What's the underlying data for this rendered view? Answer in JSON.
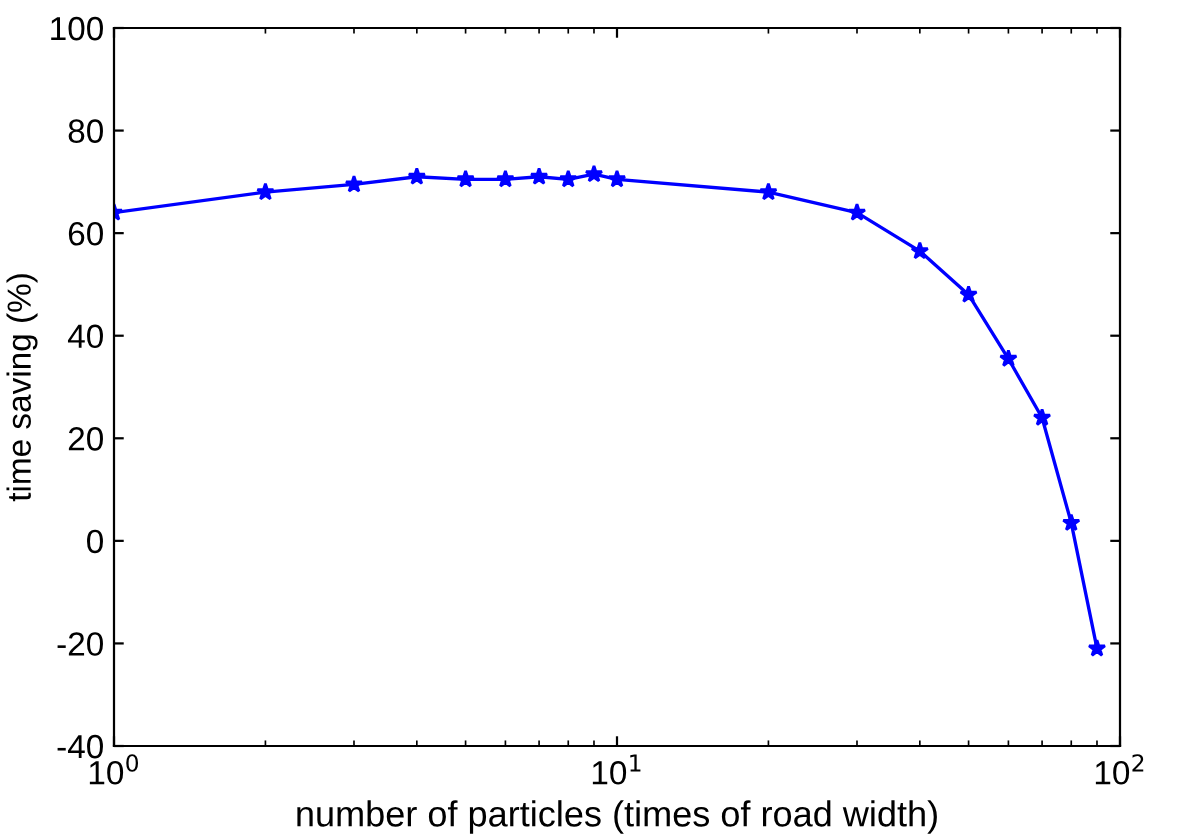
{
  "chart_data": {
    "type": "line",
    "xlabel": "number of particles (times of road width)",
    "ylabel": "time saving (%)",
    "x": [
      1,
      2,
      3,
      4,
      5,
      6,
      7,
      8,
      9,
      10,
      20,
      30,
      40,
      50,
      60,
      70,
      80,
      90
    ],
    "series": [
      {
        "color": "#0000ff",
        "values": [
          64,
          68,
          69.5,
          71,
          70.5,
          70.5,
          71,
          70.5,
          71.5,
          70.5,
          68,
          64,
          56.5,
          48,
          35.5,
          24,
          3.5,
          -21
        ]
      }
    ],
    "log": "x",
    "xlim": [
      1,
      100
    ],
    "xticks": [
      {
        "value": 1,
        "label": "10$^{0}$"
      },
      {
        "value": 10,
        "label": "10$^{1}$"
      },
      {
        "value": 100,
        "label": "10$^{2}$"
      }
    ],
    "ylim": [
      -40,
      100
    ],
    "yticks": [
      -40,
      -20,
      0,
      20,
      40,
      60,
      80,
      100
    ],
    "marker": "star",
    "line_style": "solid",
    "grid": false,
    "legend": false
  }
}
